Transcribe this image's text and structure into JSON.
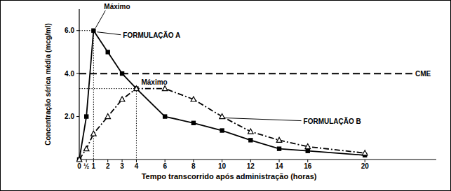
{
  "chart_data": {
    "type": "line",
    "x_label": "Tempo transcorrido após administração (horas)",
    "y_label": "Concentração sérica média (mcg/ml)",
    "x": [
      0,
      0.5,
      1,
      2,
      3,
      4,
      6,
      8,
      10,
      12,
      14,
      16,
      20
    ],
    "series": [
      {
        "name": "FORMULAÇÃO A",
        "color": "#000000",
        "marker": "square",
        "line_style": "solid",
        "values": [
          0,
          2.0,
          6.0,
          5.0,
          4.0,
          3.3,
          2.0,
          1.7,
          1.35,
          0.9,
          0.5,
          0.4,
          0.2
        ]
      },
      {
        "name": "FORMULAÇÃO B",
        "color": "#000000",
        "marker": "triangle",
        "line_style": "dashdot",
        "values": [
          0,
          0.5,
          1.2,
          2.0,
          2.8,
          3.3,
          3.3,
          2.8,
          2.0,
          1.3,
          0.9,
          0.6,
          0.3
        ]
      }
    ],
    "xlim": [
      0,
      25
    ],
    "ylim": [
      0,
      7
    ],
    "xticks": [
      0,
      {
        "value": 0.5,
        "label": "½"
      },
      1,
      2,
      3,
      4,
      6,
      8,
      10,
      12,
      14,
      16,
      20
    ],
    "yticks": [
      {
        "value": 2,
        "label": "2.0"
      },
      {
        "value": 4,
        "label": "4.0"
      },
      {
        "value": 6,
        "label": "6.0"
      }
    ],
    "grid": false,
    "reference_lines": [
      {
        "label": "CME",
        "value": 4.0,
        "line_style": "dashed"
      }
    ],
    "annotations": [
      {
        "text": "Máximo",
        "x": 1,
        "y": 6.0
      },
      {
        "text": "Máximo",
        "x": 4,
        "y": 3.3
      }
    ]
  }
}
